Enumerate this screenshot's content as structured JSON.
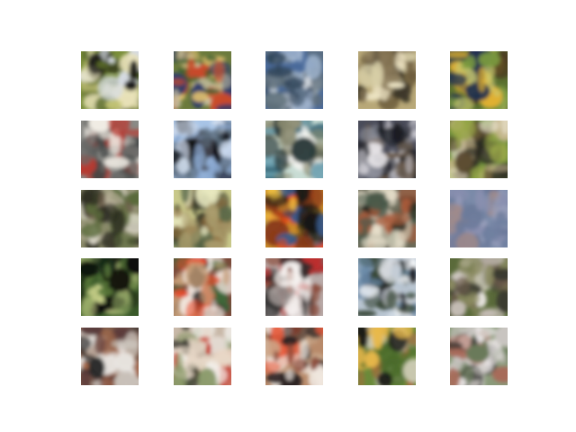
{
  "figure": {
    "background": "#ffffff",
    "rows": 5,
    "cols": 5
  },
  "samples": [
    {
      "row": 0,
      "col": 0,
      "bg": "#7a8e3a",
      "colors": [
        "#c9c97a",
        "#1b1b18",
        "#d8dde6",
        "#5a6b2a",
        "#e8e2b8"
      ]
    },
    {
      "row": 0,
      "col": 1,
      "bg": "#6b7a3c",
      "colors": [
        "#c94a2a",
        "#2d5a2c",
        "#e3c26e",
        "#2a3a6a",
        "#c7c0a2"
      ]
    },
    {
      "row": 0,
      "col": 2,
      "bg": "#4a6a9a",
      "colors": [
        "#9fb3cc",
        "#dfe4ea",
        "#33475c",
        "#5f6f7a",
        "#c2ccd8"
      ]
    },
    {
      "row": 0,
      "col": 3,
      "bg": "#b8a878",
      "colors": [
        "#3a3426",
        "#efe6c6",
        "#8a7a5a",
        "#6b5b3a",
        "#d8cfa8"
      ]
    },
    {
      "row": 0,
      "col": 4,
      "bg": "#5a7030",
      "colors": [
        "#e0b030",
        "#203050",
        "#7a9a40",
        "#c8c870",
        "#4a3a20"
      ]
    },
    {
      "row": 1,
      "col": 0,
      "bg": "#8a8a86",
      "colors": [
        "#b83a30",
        "#f0ece4",
        "#404444",
        "#6a6a68",
        "#c8c4bc"
      ]
    },
    {
      "row": 1,
      "col": 1,
      "bg": "#a8c4e6",
      "colors": [
        "#0a0a10",
        "#5a6a7a",
        "#d4e0f0",
        "#3a3a40",
        "#8aa8d0"
      ]
    },
    {
      "row": 1,
      "col": 2,
      "bg": "#c8dcd4",
      "colors": [
        "#2a3a3a",
        "#f4f4f0",
        "#6aa0b0",
        "#8a8a70",
        "#3a6a7a"
      ]
    },
    {
      "row": 1,
      "col": 3,
      "bg": "#4a4c5a",
      "colors": [
        "#e8e6ea",
        "#1a1c24",
        "#8a8c98",
        "#c4c2c8",
        "#6a5a4a"
      ]
    },
    {
      "row": 1,
      "col": 4,
      "bg": "#6a8a3a",
      "colors": [
        "#c8b890",
        "#2a2a22",
        "#e8e0cc",
        "#9aa848",
        "#5a4a30"
      ]
    },
    {
      "row": 2,
      "col": 0,
      "bg": "#8a8a6a",
      "colors": [
        "#2a2a20",
        "#b8b098",
        "#5a6a3a",
        "#e0dccc",
        "#6a5a48"
      ]
    },
    {
      "row": 2,
      "col": 1,
      "bg": "#c8c88a",
      "colors": [
        "#3a3a28",
        "#8a6a3a",
        "#e8e8c0",
        "#5a6a4a",
        "#a89a6a"
      ]
    },
    {
      "row": 2,
      "col": 2,
      "bg": "#c88a2a",
      "colors": [
        "#e84a1a",
        "#1a1a14",
        "#f0c040",
        "#3a5a8a",
        "#8a3a1a"
      ]
    },
    {
      "row": 2,
      "col": 3,
      "bg": "#6a6a58",
      "colors": [
        "#c8c4b0",
        "#2a2a20",
        "#a85a3a",
        "#e8e0cc",
        "#4a5a4a"
      ]
    },
    {
      "row": 2,
      "col": 4,
      "bg": "#7a8aa8",
      "colors": [
        "#8a90b0",
        "#6a7898",
        "#9aa0bc",
        "#a08a8a",
        "#7080a0"
      ]
    },
    {
      "row": 3,
      "col": 0,
      "bg": "#3a5a2a",
      "colors": [
        "#1a2a18",
        "#c8d08a",
        "#5a7a3a",
        "#0a0a08",
        "#8aa060"
      ]
    },
    {
      "row": 3,
      "col": 1,
      "bg": "#7a4a3a",
      "colors": [
        "#e84a2a",
        "#1a1a1a",
        "#f4ece4",
        "#3a6a3a",
        "#c8a07a"
      ]
    },
    {
      "row": 3,
      "col": 2,
      "bg": "#b8aaa8",
      "colors": [
        "#c02a2a",
        "#f4f0ee",
        "#2a2a2a",
        "#8a4a3a",
        "#d8ccc8"
      ]
    },
    {
      "row": 3,
      "col": 3,
      "bg": "#b8c4d0",
      "colors": [
        "#f4f6f8",
        "#1a1c20",
        "#6a8aa8",
        "#3a4a3a",
        "#d8dce0"
      ]
    },
    {
      "row": 3,
      "col": 4,
      "bg": "#5a6a3a",
      "colors": [
        "#c8c0b8",
        "#3a3a30",
        "#8a8a60",
        "#e8e4e0",
        "#6a5a4a"
      ]
    },
    {
      "row": 4,
      "col": 0,
      "bg": "#7a5a4a",
      "colors": [
        "#e8e4e0",
        "#2a2a2a",
        "#a86a4a",
        "#c8c0b8",
        "#5a3a3a"
      ]
    },
    {
      "row": 4,
      "col": 1,
      "bg": "#c8b8a8",
      "colors": [
        "#c83a2a",
        "#f4f2ee",
        "#3a3a30",
        "#8a9a6a",
        "#e8d8c8"
      ]
    },
    {
      "row": 4,
      "col": 2,
      "bg": "#b88a6a",
      "colors": [
        "#e85a3a",
        "#f0e8e0",
        "#2a2020",
        "#c8a88a",
        "#8a4a3a"
      ]
    },
    {
      "row": 4,
      "col": 3,
      "bg": "#6a8a3a",
      "colors": [
        "#e8b84a",
        "#1a1a18",
        "#c8c8b0",
        "#4a6a2a",
        "#a86a3a"
      ]
    },
    {
      "row": 4,
      "col": 4,
      "bg": "#8a9a7a",
      "colors": [
        "#c8c4c0",
        "#2a2a28",
        "#6a7a5a",
        "#e8e4e4",
        "#a86a5a"
      ]
    }
  ]
}
